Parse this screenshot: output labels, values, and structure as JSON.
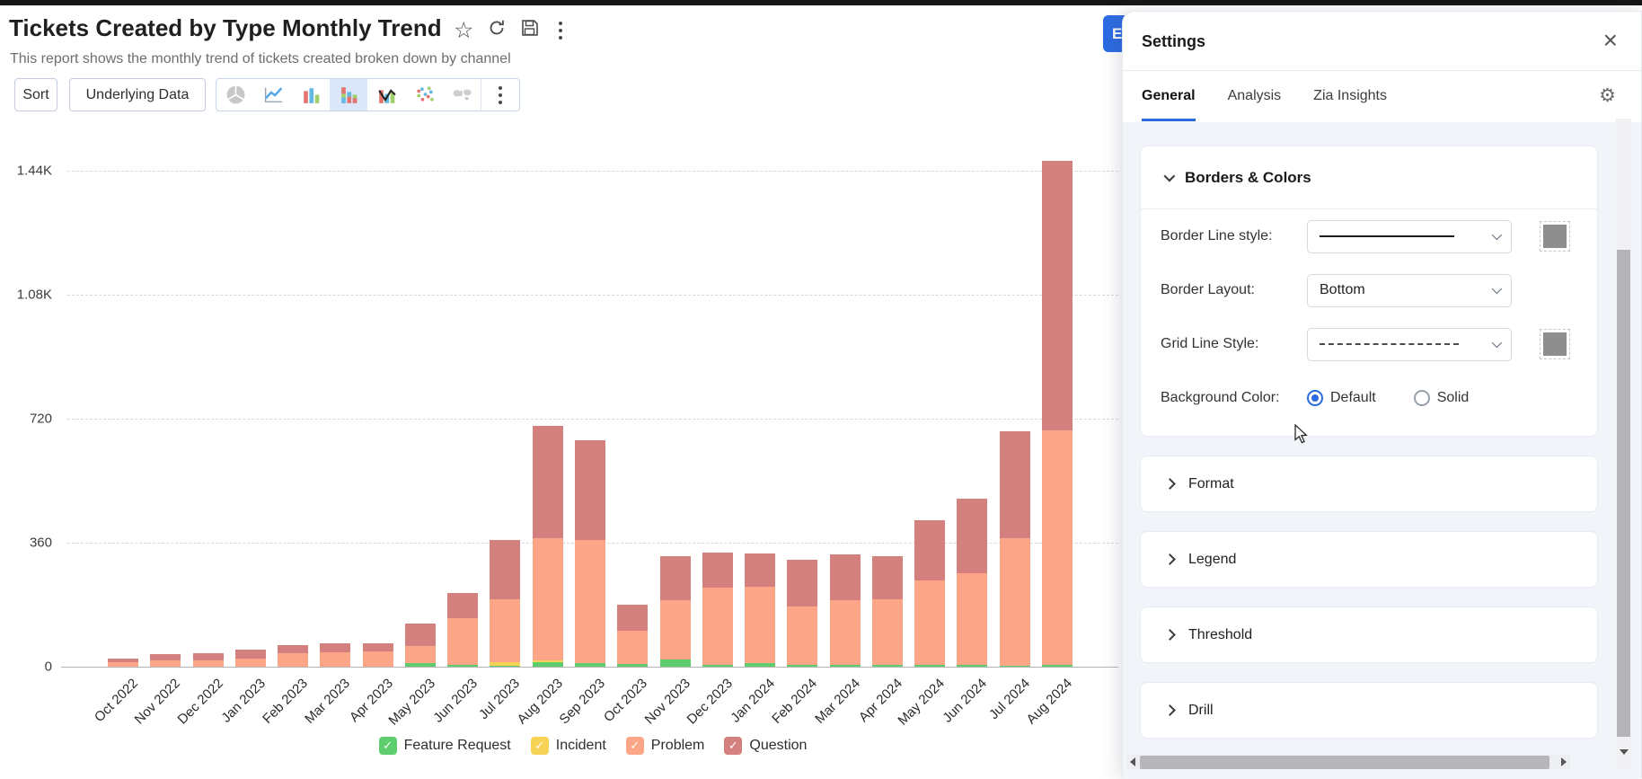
{
  "header": {
    "title": "Tickets Created by Type Monthly Trend",
    "subtitle": "This report shows the monthly trend of tickets created broken down by channel",
    "action_icons": [
      "favorite-star",
      "refresh",
      "save",
      "more-options"
    ]
  },
  "toolbar": {
    "sort_label": "Sort",
    "underlying_label": "Underlying Data",
    "chart_type_icons": [
      "pie-chart",
      "line-chart",
      "bar-chart",
      "stacked-bar-chart",
      "bar-line-combo",
      "scatter-plot",
      "map-chart"
    ],
    "selected_chart_type": "stacked-bar-chart"
  },
  "export_button": {
    "visible_text": "E"
  },
  "settings": {
    "title": "Settings",
    "tabs": [
      {
        "label": "General",
        "active": true
      },
      {
        "label": "Analysis",
        "active": false
      },
      {
        "label": "Zia Insights",
        "active": false
      }
    ],
    "borders_colors": {
      "section_label": "Borders & Colors",
      "border_line_label": "Border Line style:",
      "border_line_value": "solid-line",
      "border_layout_label": "Border Layout:",
      "border_layout_value": "Bottom",
      "grid_line_label": "Grid Line Style:",
      "grid_line_value": "dashed-line",
      "background_color_label": "Background Color:",
      "background_options": [
        {
          "label": "Default",
          "selected": true
        },
        {
          "label": "Solid",
          "selected": false
        }
      ],
      "swatch_color": "#8e8e8e"
    },
    "sections": [
      "Format",
      "Legend",
      "Threshold",
      "Drill"
    ]
  },
  "chart_data": {
    "type": "bar",
    "stacked": true,
    "title": "Tickets Created by Type Monthly Trend",
    "xlabel": "",
    "ylabel": "",
    "ylim": [
      0,
      1560
    ],
    "grid": "horizontal-dashed",
    "legend_position": "bottom",
    "yticks": [
      {
        "value": 0,
        "label": "0"
      },
      {
        "value": 360,
        "label": "360"
      },
      {
        "value": 720,
        "label": "720"
      },
      {
        "value": 1080,
        "label": "1.08K"
      },
      {
        "value": 1440,
        "label": "1.44K"
      }
    ],
    "categories": [
      "Oct 2022",
      "Nov 2022",
      "Dec 2022",
      "Jan 2023",
      "Feb 2023",
      "Mar 2023",
      "Apr 2023",
      "May 2023",
      "Jun 2023",
      "Jul 2023",
      "Aug 2023",
      "Sep 2023",
      "Oct 2023",
      "Nov 2023",
      "Dec 2023",
      "Jan 2024",
      "Feb 2024",
      "Mar 2024",
      "Apr 2024",
      "May 2024",
      "Jun 2024",
      "Jul 2024",
      "Aug 2024"
    ],
    "series": [
      {
        "name": "Feature Request",
        "color": "#5DCD6E",
        "values": [
          0,
          0,
          0,
          0,
          0,
          0,
          0,
          10,
          5,
          3,
          12,
          10,
          8,
          20,
          5,
          10,
          5,
          5,
          5,
          5,
          5,
          3,
          6
        ]
      },
      {
        "name": "Incident",
        "color": "#F6D355",
        "values": [
          0,
          0,
          0,
          0,
          0,
          0,
          0,
          0,
          0,
          10,
          5,
          0,
          0,
          0,
          0,
          0,
          0,
          0,
          0,
          0,
          0,
          0,
          0
        ]
      },
      {
        "name": "Problem",
        "color": "#FCA687",
        "values": [
          12,
          19,
          19,
          23,
          38,
          41,
          44,
          51,
          136,
          183,
          356,
          358,
          96,
          172,
          225,
          222,
          170,
          189,
          191,
          246,
          267,
          369,
          679
        ]
      },
      {
        "name": "Question",
        "color": "#D3807E",
        "values": [
          11,
          18,
          19,
          27,
          24,
          28,
          23,
          64,
          73,
          173,
          327,
          290,
          76,
          128,
          102,
          97,
          136,
          133,
          126,
          175,
          217,
          311,
          785
        ]
      }
    ]
  }
}
